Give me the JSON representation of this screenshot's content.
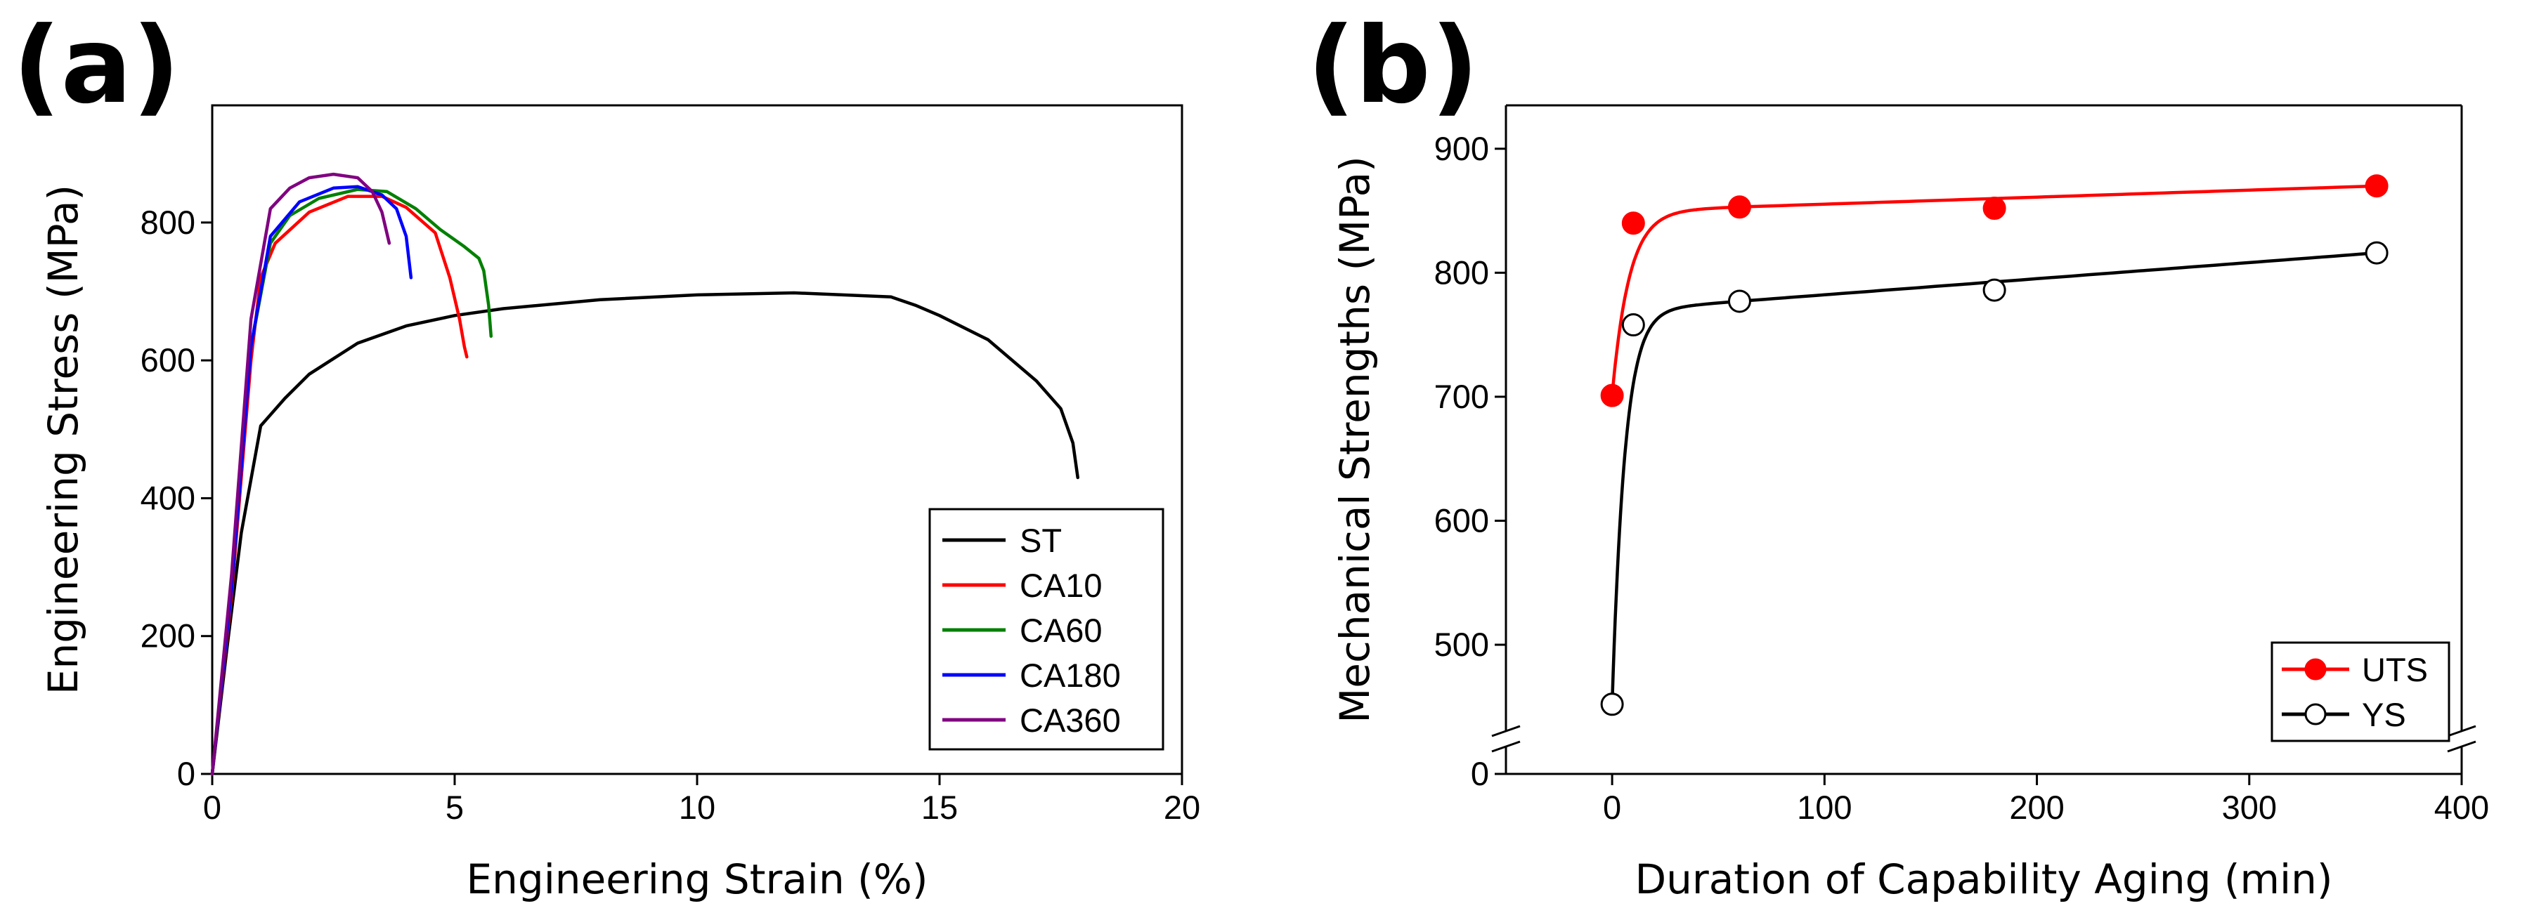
{
  "chart_data": [
    {
      "type": "line",
      "panel_label": "(a)",
      "xlabel": "Engineering Strain (%)",
      "ylabel": "Engineering Stress (MPa)",
      "xlim": [
        0,
        20
      ],
      "ylim": [
        0,
        970
      ],
      "xticks": [
        0,
        5,
        10,
        15,
        20
      ],
      "yticks": [
        0,
        200,
        400,
        600,
        800
      ],
      "legend_position": "bottom-right",
      "series": [
        {
          "name": "ST",
          "color": "#000000",
          "points": [
            [
              0,
              0
            ],
            [
              0.3,
              180
            ],
            [
              0.6,
              350
            ],
            [
              1.0,
              505
            ],
            [
              1.5,
              545
            ],
            [
              2,
              580
            ],
            [
              3,
              625
            ],
            [
              4,
              650
            ],
            [
              5,
              665
            ],
            [
              6,
              675
            ],
            [
              8,
              688
            ],
            [
              10,
              695
            ],
            [
              12,
              698
            ],
            [
              14,
              692
            ],
            [
              14.5,
              680
            ],
            [
              15,
              665
            ],
            [
              16,
              630
            ],
            [
              17,
              570
            ],
            [
              17.5,
              530
            ],
            [
              17.75,
              480
            ],
            [
              17.85,
              430
            ]
          ]
        },
        {
          "name": "CA10",
          "color": "#ff0000",
          "points": [
            [
              0,
              0
            ],
            [
              0.4,
              260
            ],
            [
              0.8,
              600
            ],
            [
              1.0,
              720
            ],
            [
              1.3,
              770
            ],
            [
              2,
              815
            ],
            [
              2.8,
              838
            ],
            [
              3.5,
              838
            ],
            [
              4,
              822
            ],
            [
              4.6,
              785
            ],
            [
              4.9,
              720
            ],
            [
              5.1,
              660
            ],
            [
              5.2,
              620
            ],
            [
              5.25,
              605
            ]
          ]
        },
        {
          "name": "CA60",
          "color": "#008000",
          "points": [
            [
              0,
              0
            ],
            [
              0.4,
              270
            ],
            [
              0.8,
              620
            ],
            [
              1.2,
              770
            ],
            [
              1.6,
              810
            ],
            [
              2.2,
              835
            ],
            [
              3,
              848
            ],
            [
              3.6,
              845
            ],
            [
              4.2,
              820
            ],
            [
              4.7,
              790
            ],
            [
              5.2,
              765
            ],
            [
              5.5,
              748
            ],
            [
              5.6,
              730
            ],
            [
              5.7,
              680
            ],
            [
              5.75,
              635
            ]
          ]
        },
        {
          "name": "CA180",
          "color": "#0000ff",
          "points": [
            [
              0,
              0
            ],
            [
              0.4,
              270
            ],
            [
              0.8,
              620
            ],
            [
              1.2,
              780
            ],
            [
              1.8,
              830
            ],
            [
              2.5,
              850
            ],
            [
              3.0,
              852
            ],
            [
              3.5,
              840
            ],
            [
              3.8,
              820
            ],
            [
              4.0,
              780
            ],
            [
              4.1,
              720
            ]
          ]
        },
        {
          "name": "CA360",
          "color": "#800080",
          "points": [
            [
              0,
              0
            ],
            [
              0.4,
              290
            ],
            [
              0.8,
              660
            ],
            [
              1.2,
              820
            ],
            [
              1.6,
              850
            ],
            [
              2.0,
              865
            ],
            [
              2.5,
              870
            ],
            [
              3.0,
              865
            ],
            [
              3.3,
              845
            ],
            [
              3.5,
              815
            ],
            [
              3.65,
              770
            ]
          ]
        }
      ]
    },
    {
      "type": "line",
      "panel_label": "(b)",
      "xlabel": "Duration of Capability Aging (min)",
      "ylabel": "Mechanical Strengths (MPa)",
      "xlim": [
        -50,
        400
      ],
      "xticks": [
        0,
        100,
        200,
        300,
        400
      ],
      "ylim": [
        440,
        935
      ],
      "yticks": [
        500,
        600,
        700,
        800,
        900
      ],
      "y_axis_break": {
        "below_break_label": "0"
      },
      "legend_position": "bottom-right",
      "series": [
        {
          "name": "UTS",
          "color": "#ff0000",
          "marker": "filled-circle",
          "x": [
            0,
            10,
            60,
            180,
            360
          ],
          "y": [
            701,
            840,
            853,
            852,
            870
          ]
        },
        {
          "name": "YS",
          "color": "#000000",
          "marker": "open-circle",
          "x": [
            0,
            10,
            60,
            180,
            360
          ],
          "y": [
            452,
            758,
            777,
            786,
            816
          ]
        }
      ]
    }
  ]
}
